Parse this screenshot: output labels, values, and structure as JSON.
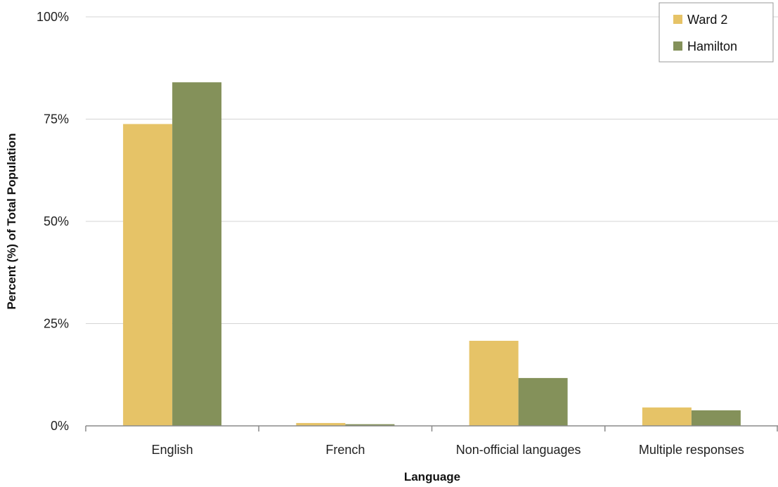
{
  "chart_data": {
    "type": "bar",
    "title": "",
    "xlabel": "Language",
    "ylabel": "Percent (%) of Total Population",
    "categories": [
      "English",
      "French",
      "Non-official languages",
      "Multiple responses"
    ],
    "series": [
      {
        "name": "Ward 2",
        "color": "#E6C367",
        "values": [
          73.8,
          0.7,
          20.8,
          4.5
        ]
      },
      {
        "name": "Hamilton",
        "color": "#84915A",
        "values": [
          84.0,
          0.4,
          11.7,
          3.8
        ]
      }
    ],
    "ylim": [
      0,
      100
    ],
    "yticks": [
      0,
      25,
      50,
      75,
      100
    ],
    "ytick_labels": [
      "0%",
      "25%",
      "50%",
      "75%",
      "100%"
    ],
    "grid": true,
    "legend": "top-right"
  }
}
